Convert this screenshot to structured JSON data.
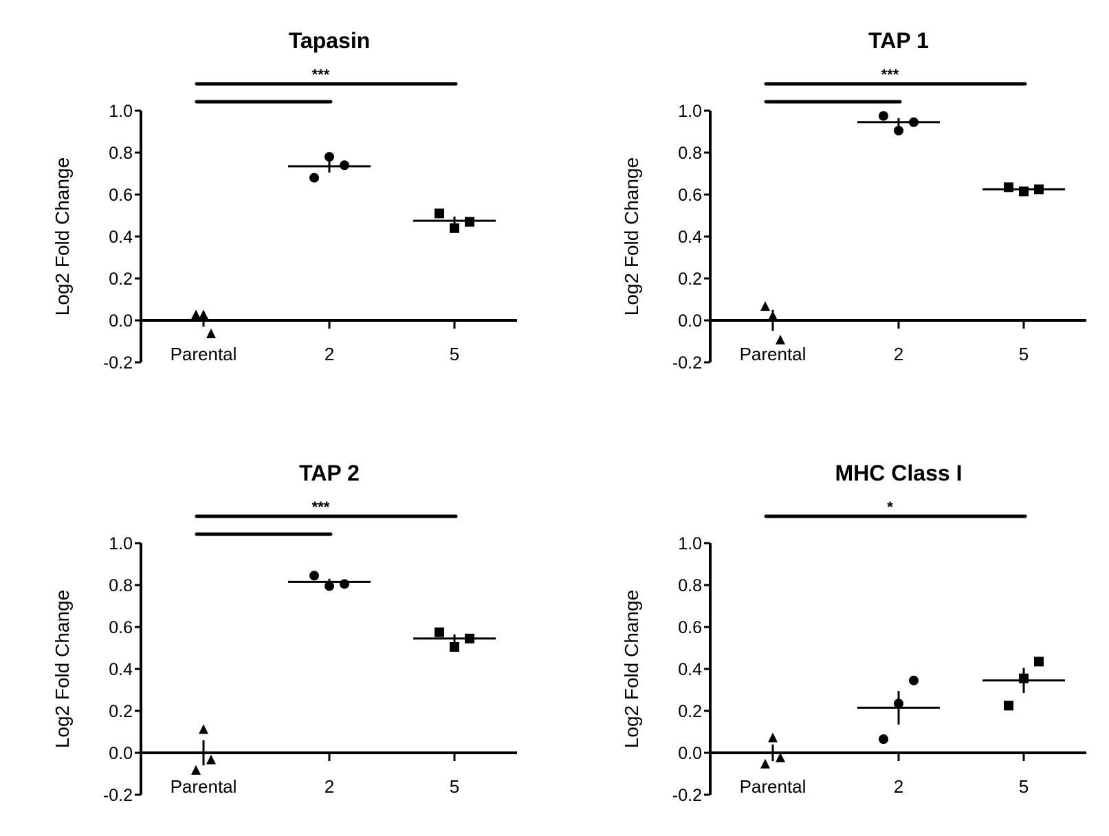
{
  "chart_data": [
    {
      "type": "scatter",
      "title": "Tapasin",
      "ylabel": "Log2 Fold Change",
      "xlabel": "",
      "categories": [
        "Parental",
        "2",
        "5"
      ],
      "ylim": [
        -0.2,
        1.0
      ],
      "yticks": [
        "1.0",
        "0.8",
        "0.6",
        "0.4",
        "0.2",
        "0.0",
        "-0.2"
      ],
      "grid": false,
      "markers": [
        "triangle",
        "circle",
        "square"
      ],
      "points": [
        [
          0.025,
          0.025,
          -0.065
        ],
        [
          0.68,
          0.78,
          0.74
        ],
        [
          0.51,
          0.44,
          0.47
        ]
      ],
      "means": [
        0.0,
        0.735,
        0.475
      ],
      "sem": [
        0.03,
        0.03,
        0.02
      ],
      "significance": [
        {
          "from": "Parental",
          "to": "5",
          "label": "***"
        },
        {
          "from": "Parental",
          "to": "2",
          "label": ""
        }
      ]
    },
    {
      "type": "scatter",
      "title": "TAP 1",
      "ylabel": "Log2 Fold Change",
      "xlabel": "",
      "categories": [
        "Parental",
        "2",
        "5"
      ],
      "ylim": [
        -0.2,
        1.0
      ],
      "yticks": [
        "1.0",
        "0.8",
        "0.6",
        "0.4",
        "0.2",
        "0.0",
        "-0.2"
      ],
      "grid": false,
      "markers": [
        "triangle",
        "circle",
        "square"
      ],
      "points": [
        [
          0.065,
          0.02,
          -0.095
        ],
        [
          0.975,
          0.905,
          0.945
        ],
        [
          0.635,
          0.615,
          0.625
        ]
      ],
      "means": [
        0.0,
        0.945,
        0.625
      ],
      "sem": [
        0.05,
        0.02,
        0.006
      ],
      "significance": [
        {
          "from": "Parental",
          "to": "5",
          "label": "***"
        },
        {
          "from": "Parental",
          "to": "2",
          "label": ""
        }
      ]
    },
    {
      "type": "scatter",
      "title": "TAP 2",
      "ylabel": "Log2 Fold Change",
      "xlabel": "",
      "categories": [
        "Parental",
        "2",
        "5"
      ],
      "ylim": [
        -0.2,
        1.0
      ],
      "yticks": [
        "1.0",
        "0.8",
        "0.6",
        "0.4",
        "0.2",
        "0.0",
        "-0.2"
      ],
      "grid": false,
      "markers": [
        "triangle",
        "circle",
        "square"
      ],
      "points": [
        [
          -0.085,
          0.11,
          -0.035
        ],
        [
          0.845,
          0.795,
          0.805
        ],
        [
          0.575,
          0.505,
          0.545
        ]
      ],
      "means": [
        0.0,
        0.815,
        0.545
      ],
      "sem": [
        0.06,
        0.015,
        0.02
      ],
      "significance": [
        {
          "from": "Parental",
          "to": "5",
          "label": "***"
        },
        {
          "from": "Parental",
          "to": "2",
          "label": ""
        }
      ]
    },
    {
      "type": "scatter",
      "title": "MHC Class I",
      "ylabel": "Log2 Fold Change",
      "xlabel": "",
      "categories": [
        "Parental",
        "2",
        "5"
      ],
      "ylim": [
        -0.2,
        1.0
      ],
      "yticks": [
        "1.0",
        "0.8",
        "0.6",
        "0.4",
        "0.2",
        "0.0",
        "-0.2"
      ],
      "grid": false,
      "markers": [
        "triangle",
        "circle",
        "square"
      ],
      "points": [
        [
          -0.055,
          0.07,
          -0.025
        ],
        [
          0.065,
          0.235,
          0.345
        ],
        [
          0.225,
          0.355,
          0.435
        ]
      ],
      "means": [
        0.0,
        0.215,
        0.345
      ],
      "sem": [
        0.04,
        0.08,
        0.06
      ],
      "significance": [
        {
          "from": "Parental",
          "to": "5",
          "label": "*"
        }
      ]
    }
  ]
}
